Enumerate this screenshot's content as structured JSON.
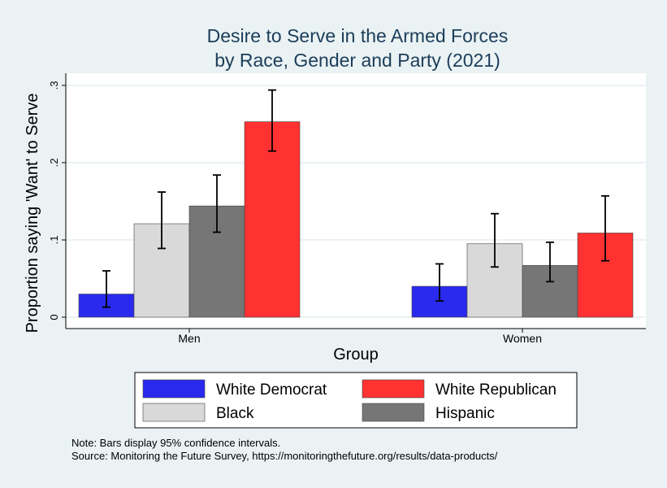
{
  "chart_data": {
    "type": "bar",
    "title": "Desire to Serve in the Armed Forces",
    "subtitle": "by Race, Gender and Party (2021)",
    "xlabel": "Group",
    "ylabel": "Proportion saying 'Want' to Serve",
    "ylim": [
      0,
      0.3
    ],
    "yticks": [
      0,
      0.1,
      0.2,
      0.3
    ],
    "ytick_labels": [
      "0",
      ".1",
      ".2",
      ".3"
    ],
    "categories": [
      "Men",
      "Women"
    ],
    "grid": true,
    "legend_position": "bottom",
    "series": [
      {
        "name": "White Democrat",
        "color": "#2a2aee",
        "values": [
          0.03,
          0.04
        ],
        "ci_low": [
          0.013,
          0.021
        ],
        "ci_high": [
          0.06,
          0.069
        ]
      },
      {
        "name": "Black",
        "color": "#d9d9d9",
        "values": [
          0.121,
          0.095
        ],
        "ci_low": [
          0.089,
          0.065
        ],
        "ci_high": [
          0.162,
          0.134
        ]
      },
      {
        "name": "Hispanic",
        "color": "#767676",
        "values": [
          0.144,
          0.067
        ],
        "ci_low": [
          0.11,
          0.046
        ],
        "ci_high": [
          0.184,
          0.097
        ]
      },
      {
        "name": "White Republican",
        "color": "#ff3131",
        "values": [
          0.253,
          0.109
        ],
        "ci_low": [
          0.215,
          0.073
        ],
        "ci_high": [
          0.294,
          0.157
        ]
      }
    ]
  },
  "note_line1": "Note: Bars display 95% confidence intervals.",
  "note_line2": "Source: Monitoring the Future Survey, https://monitoringthefuture.org/results/data-products/"
}
